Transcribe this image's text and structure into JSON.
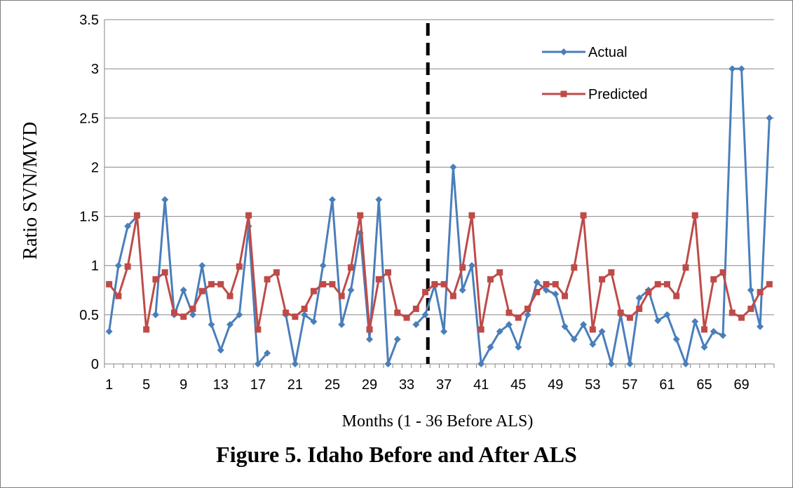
{
  "caption": "Figure 5. Idaho Before and After ALS",
  "chart_data": {
    "type": "line",
    "ylabel": "Ratio SVN/MVD",
    "xlabel": "Months  (1 - 36 Before ALS)",
    "ylim": [
      0,
      3.5
    ],
    "yticks": [
      "0",
      "0.5",
      "1",
      "1.5",
      "2",
      "2.5",
      "3",
      "3.5"
    ],
    "x": [
      1,
      2,
      3,
      4,
      5,
      6,
      7,
      8,
      9,
      10,
      11,
      12,
      13,
      14,
      15,
      16,
      17,
      18,
      19,
      20,
      21,
      22,
      23,
      24,
      25,
      26,
      27,
      28,
      29,
      30,
      31,
      32,
      33,
      34,
      35,
      36,
      37,
      38,
      39,
      40,
      41,
      42,
      43,
      44,
      45,
      46,
      47,
      48,
      49,
      50,
      51,
      52,
      53,
      54,
      55,
      56,
      57,
      58,
      59,
      60,
      61,
      62,
      63,
      64,
      65,
      66,
      67,
      68,
      69,
      70,
      71,
      72
    ],
    "xtick_labels": [
      "1",
      "5",
      "9",
      "13",
      "17",
      "21",
      "25",
      "29",
      "33",
      "37",
      "41",
      "45",
      "49",
      "53",
      "57",
      "61",
      "65",
      "69"
    ],
    "grid": true,
    "legend_position": "top-right",
    "vertical_marker_after_month": 35,
    "series": [
      {
        "name": "Actual",
        "color": "#4a7ebb",
        "marker": "diamond",
        "values": [
          0.33,
          1.0,
          1.4,
          1.5,
          null,
          0.5,
          1.67,
          0.5,
          0.75,
          0.5,
          1.0,
          0.4,
          0.14,
          0.4,
          0.5,
          1.4,
          0.0,
          0.11,
          null,
          0.5,
          0.0,
          0.5,
          0.43,
          1.0,
          1.67,
          0.4,
          0.75,
          1.33,
          0.25,
          1.67,
          0.0,
          0.25,
          null,
          0.4,
          0.5,
          0.8,
          0.33,
          2.0,
          0.75,
          1.0,
          0.0,
          0.17,
          0.33,
          0.4,
          0.17,
          0.5,
          0.83,
          0.75,
          0.71,
          0.38,
          0.25,
          0.4,
          0.2,
          0.33,
          0.0,
          0.5,
          0.0,
          0.67,
          0.75,
          0.44,
          0.5,
          0.25,
          0.0,
          0.43,
          0.17,
          0.33,
          0.29,
          3.0,
          3.0,
          0.75,
          0.38,
          2.5
        ]
      },
      {
        "name": "Predicted",
        "color": "#be4b48",
        "marker": "square",
        "values": [
          0.81,
          0.69,
          0.99,
          1.51,
          0.35,
          0.86,
          0.93,
          0.52,
          0.48,
          0.56,
          0.74,
          0.81,
          0.81,
          0.69,
          0.99,
          1.51,
          0.35,
          0.86,
          0.93,
          0.52,
          0.48,
          0.56,
          0.74,
          0.81,
          0.81,
          0.69,
          0.98,
          1.51,
          0.35,
          0.86,
          0.93,
          0.52,
          0.47,
          0.56,
          0.73,
          0.81,
          0.81,
          0.69,
          0.98,
          1.51,
          0.35,
          0.86,
          0.93,
          0.52,
          0.47,
          0.56,
          0.73,
          0.81,
          0.81,
          0.69,
          0.98,
          1.51,
          0.35,
          0.86,
          0.93,
          0.52,
          0.47,
          0.56,
          0.73,
          0.81,
          0.81,
          0.69,
          0.98,
          1.51,
          0.35,
          0.86,
          0.93,
          0.52,
          0.47,
          0.56,
          0.73,
          0.81
        ]
      }
    ]
  }
}
